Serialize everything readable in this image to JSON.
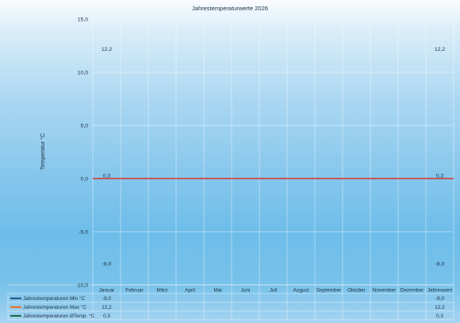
{
  "chart_data": {
    "type": "line",
    "title": "Jahrestemperaturwerte 2026",
    "ylabel": "Temperatur °C",
    "xlabel": "",
    "ylim": [
      -10,
      15
    ],
    "yticks": [
      "15,0",
      "10,0",
      "5,0",
      "0,0",
      "-5,0",
      "-10,0"
    ],
    "ytick_values": [
      15,
      10,
      5,
      0,
      -5,
      -10
    ],
    "categories": [
      "Januar",
      "Februar",
      "März",
      "April",
      "Mai",
      "Juni",
      "Juli",
      "August",
      "September",
      "Oktober",
      "November",
      "Dezember",
      "Jahreswert"
    ],
    "series": [
      {
        "name": "Jahrestemperaturen Min °C",
        "color": "#1f5c8e",
        "values": [
          -8.0,
          null,
          null,
          null,
          null,
          null,
          null,
          null,
          null,
          null,
          null,
          null,
          -8.0
        ],
        "labels": [
          "-8,0",
          "",
          "",
          "",
          "",
          "",
          "",
          "",
          "",
          "",
          "",
          "",
          "-8,0"
        ]
      },
      {
        "name": "Jahrestemperaturen Max °C",
        "color": "#e8702a",
        "values": [
          12.2,
          null,
          null,
          null,
          null,
          null,
          null,
          null,
          null,
          null,
          null,
          null,
          12.2
        ],
        "labels": [
          "12,2",
          "",
          "",
          "",
          "",
          "",
          "",
          "",
          "",
          "",
          "",
          "",
          "12,2"
        ]
      },
      {
        "name": "Jahrestemperaturen ØTemp. °C",
        "color": "#1e6b4a",
        "values": [
          0.3,
          null,
          null,
          null,
          null,
          null,
          null,
          null,
          null,
          null,
          null,
          null,
          0.3
        ],
        "labels": [
          "0,3",
          "",
          "",
          "",
          "",
          "",
          "",
          "",
          "",
          "",
          "",
          "",
          "0,3"
        ]
      }
    ],
    "zero_line_color": "#d6332b",
    "grid": true,
    "legend_position": "bottom-left (data table)"
  }
}
